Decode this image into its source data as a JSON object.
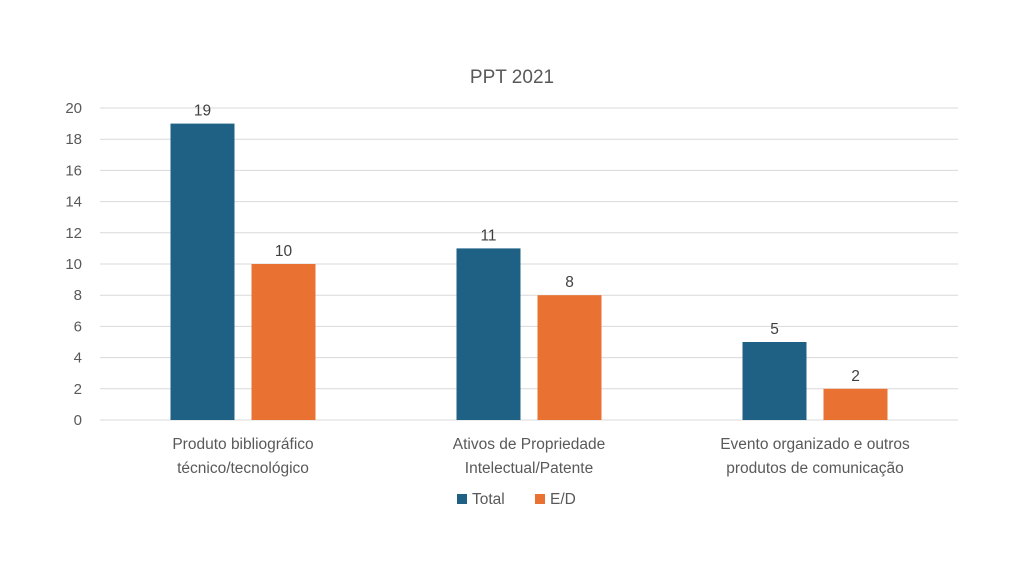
{
  "chart_data": {
    "type": "bar",
    "title": "PPT 2021",
    "categories": [
      [
        "Produto bibliográfico",
        "técnico/tecnológico"
      ],
      [
        "Ativos de Propriedade",
        "Intelectual/Patente"
      ],
      [
        "Evento organizado e outros",
        "produtos de comunicação"
      ]
    ],
    "series": [
      {
        "name": "Total",
        "color": "#1f6185",
        "values": [
          19,
          11,
          5
        ]
      },
      {
        "name": "E/D",
        "color": "#e97132",
        "values": [
          10,
          8,
          2
        ]
      }
    ],
    "ylim": [
      0,
      20
    ],
    "yticks": [
      0,
      2,
      4,
      6,
      8,
      10,
      12,
      14,
      16,
      18,
      20
    ],
    "xlabel": "",
    "ylabel": "",
    "grid": true,
    "legend": "bottom-center",
    "data_labels": true
  }
}
